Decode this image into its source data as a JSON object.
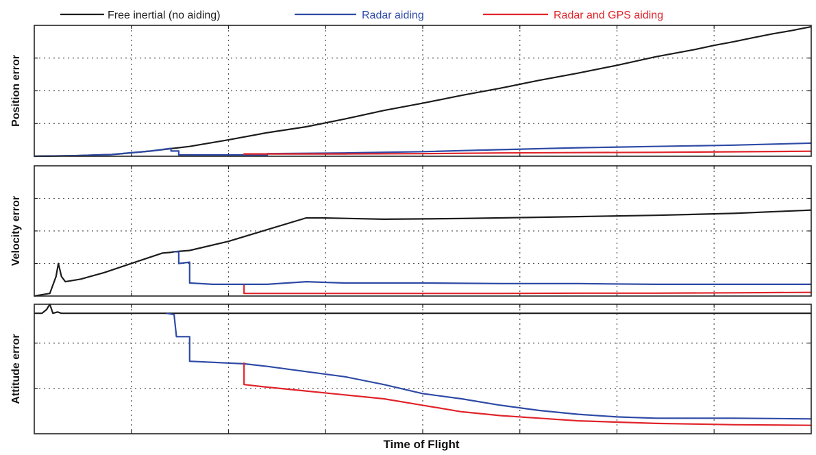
{
  "colors": {
    "free_inertial": "#1c1c1c",
    "radar": "#2e4aa5",
    "radar_gps": "#e0242a"
  },
  "legend": [
    {
      "key": "free_inertial",
      "label": "Free inertial (no aiding)"
    },
    {
      "key": "radar",
      "label": "Radar aiding"
    },
    {
      "key": "radar_gps",
      "label": "Radar and GPS aiding"
    }
  ],
  "chart_data": {
    "type": "line",
    "xlabel": "Time of Flight",
    "grid": true,
    "legend_position": "top",
    "xlim": [
      0,
      1
    ],
    "x_gridlines": 8,
    "shared_x": true,
    "panels": [
      {
        "ylabel": "Position error",
        "ylim": [
          0,
          1
        ],
        "y_gridlines": [
          0.25,
          0.5,
          0.75
        ],
        "series": [
          {
            "key": "free_inertial",
            "points": [
              [
                0,
                0
              ],
              [
                0.05,
                0.004
              ],
              [
                0.1,
                0.013
              ],
              [
                0.15,
                0.04
              ],
              [
                0.2,
                0.075
              ],
              [
                0.25,
                0.125
              ],
              [
                0.3,
                0.18
              ],
              [
                0.35,
                0.225
              ],
              [
                0.4,
                0.285
              ],
              [
                0.45,
                0.35
              ],
              [
                0.5,
                0.405
              ],
              [
                0.55,
                0.465
              ],
              [
                0.6,
                0.52
              ],
              [
                0.65,
                0.58
              ],
              [
                0.7,
                0.635
              ],
              [
                0.75,
                0.695
              ],
              [
                0.8,
                0.76
              ],
              [
                0.85,
                0.815
              ],
              [
                0.875,
                0.847
              ],
              [
                0.9,
                0.875
              ],
              [
                0.925,
                0.905
              ],
              [
                0.95,
                0.935
              ],
              [
                0.975,
                0.96
              ],
              [
                1,
                0.99
              ]
            ]
          },
          {
            "key": "radar",
            "points": [
              [
                0,
                0
              ],
              [
                0.05,
                0.004
              ],
              [
                0.1,
                0.013
              ],
              [
                0.15,
                0.04
              ],
              [
                0.176,
                0.06
              ],
              [
                0.176,
                0.04
              ],
              [
                0.186,
                0.04
              ],
              [
                0.186,
                0.01
              ],
              [
                0.3,
                0.01
              ],
              [
                0.3,
                0.02
              ],
              [
                0.4,
                0.025
              ],
              [
                0.5,
                0.035
              ],
              [
                0.6,
                0.05
              ],
              [
                0.7,
                0.065
              ],
              [
                0.8,
                0.075
              ],
              [
                0.9,
                0.085
              ],
              [
                1,
                0.1
              ]
            ]
          },
          {
            "key": "radar_gps",
            "points": [
              [
                0.27,
                0.01
              ],
              [
                0.27,
                0.018
              ],
              [
                0.4,
                0.018
              ],
              [
                0.5,
                0.02
              ],
              [
                0.6,
                0.025
              ],
              [
                0.7,
                0.028
              ],
              [
                0.8,
                0.03
              ],
              [
                0.9,
                0.034
              ],
              [
                1,
                0.038
              ]
            ]
          }
        ]
      },
      {
        "ylabel": "Velocity error",
        "ylim": [
          0,
          1
        ],
        "y_gridlines": [
          0.25,
          0.5,
          0.75
        ],
        "series": [
          {
            "key": "free_inertial",
            "points": [
              [
                0,
                0
              ],
              [
                0.01,
                0.01
              ],
              [
                0.02,
                0.02
              ],
              [
                0.028,
                0.15
              ],
              [
                0.031,
                0.25
              ],
              [
                0.035,
                0.15
              ],
              [
                0.04,
                0.11
              ],
              [
                0.06,
                0.13
              ],
              [
                0.09,
                0.18
              ],
              [
                0.13,
                0.26
              ],
              [
                0.165,
                0.33
              ],
              [
                0.175,
                0.335
              ],
              [
                0.18,
                0.34
              ],
              [
                0.2,
                0.35
              ],
              [
                0.25,
                0.42
              ],
              [
                0.3,
                0.51
              ],
              [
                0.35,
                0.6
              ],
              [
                0.37,
                0.6
              ],
              [
                0.45,
                0.59
              ],
              [
                0.55,
                0.595
              ],
              [
                0.6,
                0.6
              ],
              [
                0.7,
                0.61
              ],
              [
                0.8,
                0.62
              ],
              [
                0.9,
                0.635
              ],
              [
                1,
                0.66
              ]
            ]
          },
          {
            "key": "radar",
            "points": [
              [
                0.18,
                0.34
              ],
              [
                0.186,
                0.34
              ],
              [
                0.186,
                0.25
              ],
              [
                0.2,
                0.26
              ],
              [
                0.2,
                0.1
              ],
              [
                0.23,
                0.09
              ],
              [
                0.3,
                0.09
              ],
              [
                0.35,
                0.11
              ],
              [
                0.4,
                0.1
              ],
              [
                0.5,
                0.1
              ],
              [
                0.6,
                0.095
              ],
              [
                0.7,
                0.095
              ],
              [
                0.8,
                0.09
              ],
              [
                0.9,
                0.09
              ],
              [
                1,
                0.09
              ]
            ]
          },
          {
            "key": "radar_gps",
            "points": [
              [
                0.27,
                0.085
              ],
              [
                0.27,
                0.02
              ],
              [
                0.4,
                0.02
              ],
              [
                0.5,
                0.02
              ],
              [
                0.6,
                0.02
              ],
              [
                0.7,
                0.022
              ],
              [
                0.8,
                0.022
              ],
              [
                0.9,
                0.025
              ],
              [
                1,
                0.028
              ]
            ]
          }
        ]
      },
      {
        "ylabel": "Attitude error",
        "ylim": [
          0,
          1
        ],
        "y_gridlines": [
          0.35,
          0.7
        ],
        "series": [
          {
            "key": "free_inertial",
            "points": [
              [
                0,
                0.93
              ],
              [
                0.01,
                0.93
              ],
              [
                0.016,
                0.96
              ],
              [
                0.02,
                1
              ],
              [
                0.024,
                0.93
              ],
              [
                0.03,
                0.94
              ],
              [
                0.035,
                0.93
              ],
              [
                0.1,
                0.93
              ],
              [
                0.2,
                0.93
              ],
              [
                0.3,
                0.93
              ],
              [
                0.4,
                0.93
              ],
              [
                0.5,
                0.93
              ],
              [
                0.6,
                0.93
              ],
              [
                0.7,
                0.93
              ],
              [
                0.8,
                0.93
              ],
              [
                0.9,
                0.93
              ],
              [
                1,
                0.93
              ]
            ]
          },
          {
            "key": "radar",
            "points": [
              [
                0.17,
                0.93
              ],
              [
                0.18,
                0.92
              ],
              [
                0.183,
                0.75
              ],
              [
                0.2,
                0.75
              ],
              [
                0.2,
                0.56
              ],
              [
                0.27,
                0.54
              ],
              [
                0.3,
                0.52
              ],
              [
                0.35,
                0.48
              ],
              [
                0.4,
                0.44
              ],
              [
                0.45,
                0.38
              ],
              [
                0.5,
                0.31
              ],
              [
                0.55,
                0.27
              ],
              [
                0.6,
                0.22
              ],
              [
                0.65,
                0.18
              ],
              [
                0.7,
                0.15
              ],
              [
                0.75,
                0.13
              ],
              [
                0.8,
                0.12
              ],
              [
                0.85,
                0.12
              ],
              [
                0.9,
                0.12
              ],
              [
                1,
                0.115
              ]
            ]
          },
          {
            "key": "radar_gps",
            "points": [
              [
                0.27,
                0.55
              ],
              [
                0.27,
                0.38
              ],
              [
                0.3,
                0.36
              ],
              [
                0.35,
                0.33
              ],
              [
                0.4,
                0.3
              ],
              [
                0.45,
                0.27
              ],
              [
                0.5,
                0.22
              ],
              [
                0.55,
                0.17
              ],
              [
                0.6,
                0.14
              ],
              [
                0.65,
                0.12
              ],
              [
                0.7,
                0.1
              ],
              [
                0.75,
                0.09
              ],
              [
                0.8,
                0.08
              ],
              [
                0.85,
                0.075
              ],
              [
                0.9,
                0.07
              ],
              [
                1,
                0.065
              ]
            ]
          }
        ]
      }
    ]
  }
}
